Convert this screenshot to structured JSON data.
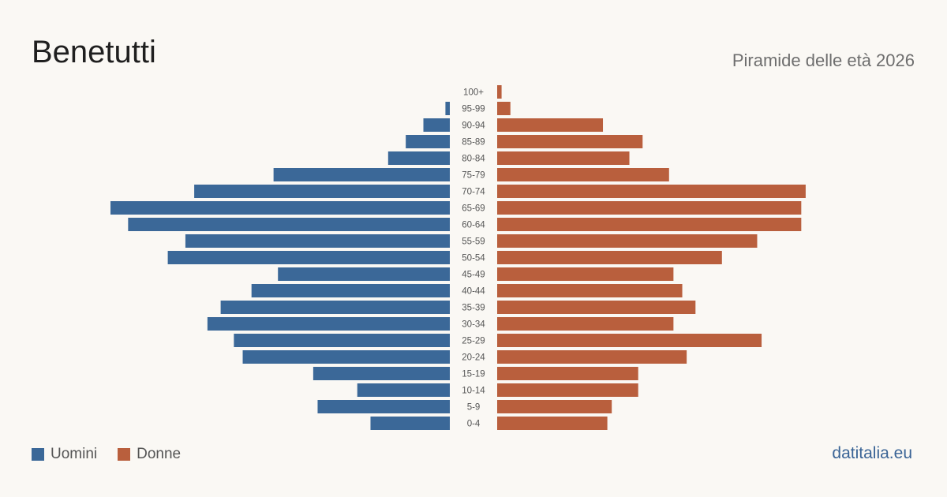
{
  "title": "Benetutti",
  "subtitle": "Piramide delle età 2026",
  "brand": "datitalia.eu",
  "colors": {
    "men": "#3b6898",
    "women": "#b95f3d",
    "tick": "#555555"
  },
  "chart_data": {
    "type": "bar",
    "orientation": "horizontal-pyramid",
    "title": "Benetutti",
    "subtitle": "Piramide delle età 2026",
    "categories": [
      "100+",
      "95-99",
      "90-94",
      "85-89",
      "80-84",
      "75-79",
      "70-74",
      "65-69",
      "60-64",
      "55-59",
      "50-54",
      "45-49",
      "40-44",
      "35-39",
      "30-34",
      "25-29",
      "20-24",
      "15-19",
      "10-14",
      "5-9",
      "0-4"
    ],
    "series": [
      {
        "name": "Uomini",
        "color": "#3b6898",
        "values": [
          0,
          1,
          6,
          10,
          14,
          40,
          58,
          77,
          73,
          60,
          64,
          39,
          45,
          52,
          55,
          49,
          47,
          31,
          21,
          30,
          18
        ]
      },
      {
        "name": "Donne",
        "color": "#b95f3d",
        "values": [
          1,
          3,
          24,
          33,
          30,
          39,
          70,
          69,
          69,
          59,
          51,
          40,
          42,
          45,
          40,
          60,
          43,
          32,
          32,
          26,
          25
        ]
      }
    ],
    "grid": false,
    "legend_position": "bottom-left"
  }
}
